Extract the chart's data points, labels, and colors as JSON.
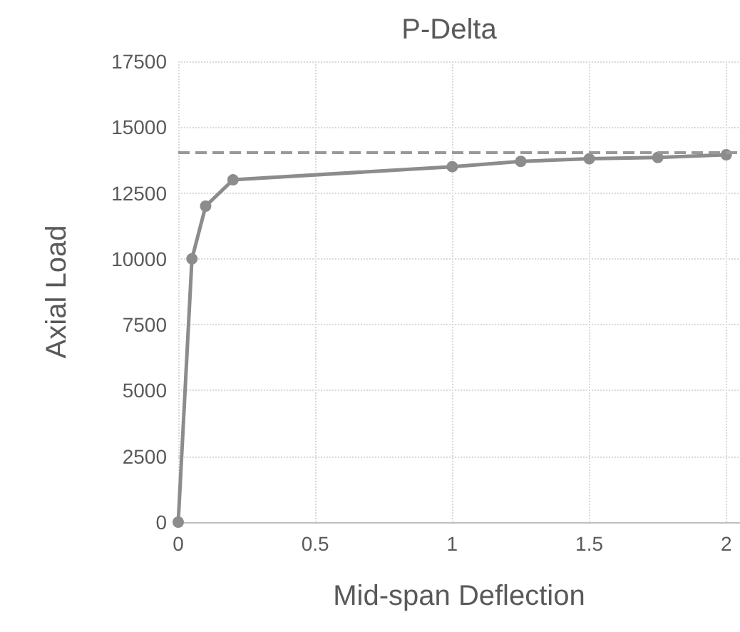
{
  "chart_data": {
    "type": "line",
    "title": "P-Delta",
    "xlabel": "Mid-span Deflection",
    "ylabel": "Axial Load",
    "x": [
      0,
      0.05,
      0.1,
      0.2,
      1,
      1.25,
      1.5,
      1.75,
      2
    ],
    "series": [
      {
        "color": "#8c8c8c",
        "values": [
          0,
          10000,
          12000,
          13000,
          13500,
          13700,
          13800,
          13850,
          13950
        ]
      }
    ],
    "xlim": [
      0,
      2.05
    ],
    "xticks": [
      0,
      0.5,
      1,
      1.5,
      2
    ],
    "ylim": [
      0,
      17500
    ],
    "yticks": [
      0,
      2500,
      5000,
      7500,
      10000,
      12500,
      15000,
      17500
    ],
    "ref_lines": [
      {
        "axis": "y",
        "value": 14050,
        "color": "#999999",
        "line_style": "dashed"
      }
    ],
    "grid": true,
    "marker": "circle",
    "line_style": "solid"
  }
}
